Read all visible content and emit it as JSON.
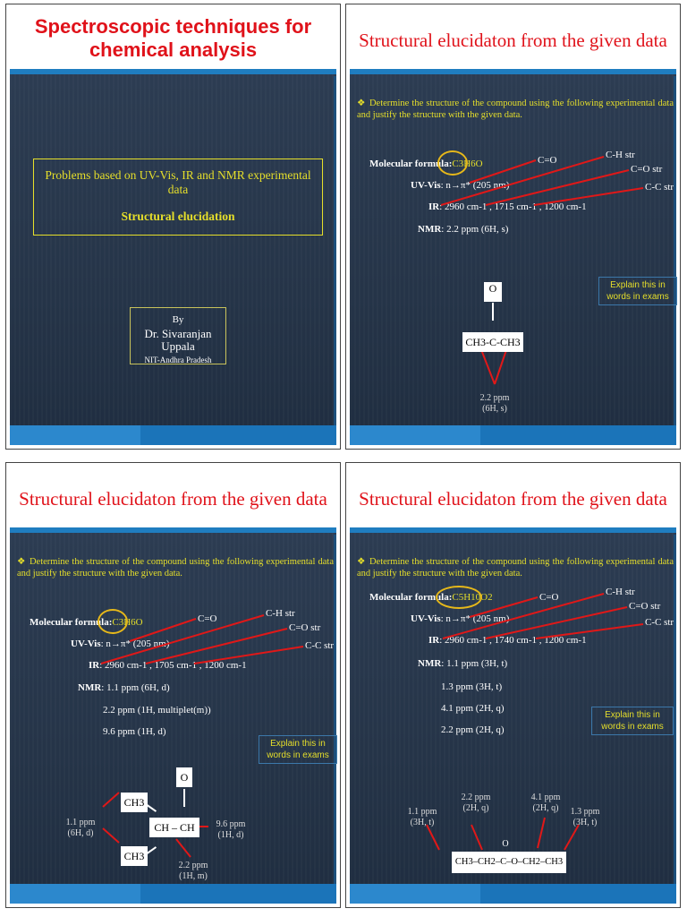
{
  "slide1": {
    "title_line1": "Spectroscopic techniques for",
    "title_line2": "chemical analysis",
    "box_line1": "Problems based on UV-Vis, IR and NMR experimental data",
    "box_line2": "Structural elucidation",
    "by": "By",
    "author": "Dr. Sivaranjan Uppala",
    "affiliation": "NIT-Andhra Pradesh"
  },
  "slide2": {
    "title": "Structural elucidaton from the given data",
    "bullet": "Determine the structure of the compound using the following experimental data and justify the structure with the given data.",
    "mf_label": "Molecular formula:",
    "mf_value": "C3H6O",
    "uv_label": "UV-Vis",
    "uv_value": ": n→π* (205 nm)",
    "ir_label": "IR",
    "ir_value": ": 2960 cm-1 , 1715 cm-1 , 1200 cm-1",
    "nmr_label": "NMR",
    "nmr_value": ": 2.2 ppm (6H, s)",
    "ann_co": "C=O",
    "ann_ch": "C-H str",
    "ann_costr": "C=O str",
    "ann_cc": "C-C str",
    "explain": "Explain this in words in exams",
    "struct_o": "O",
    "struct_main": "CH3-C-CH3",
    "peak1": "2.2 ppm",
    "peak1b": "(6H, s)"
  },
  "slide3": {
    "title": "Structural elucidaton from the given data",
    "bullet": "Determine the structure of the compound using the following experimental data and justify the structure with the given data.",
    "mf_label": "Molecular formula:",
    "mf_value": "C3H6O",
    "uv_label": "UV-Vis",
    "uv_value": ": n→π* (205 nm)",
    "ir_label": "IR",
    "ir_value": ": 2960 cm-1 , 1705 cm-1 , 1200 cm-1",
    "nmr_label": "NMR",
    "nmr1": ": 1.1 ppm (6H, d)",
    "nmr2": "2.2 ppm (1H, multiplet(m))",
    "nmr3": "9.6 ppm (1H, d)",
    "ann_co": "C=O",
    "ann_ch": "C-H str",
    "ann_costr": "C=O str",
    "ann_cc": "C-C str",
    "explain": "Explain this in words in exams",
    "s_ch3a": "CH3",
    "s_ch3b": "CH3",
    "s_o": "O",
    "s_chch": "CH – CH",
    "p1": "1.1 ppm",
    "p1b": "(6H, d)",
    "p2": "9.6 ppm",
    "p2b": "(1H, d)",
    "p3": "2.2 ppm",
    "p3b": "(1H, m)"
  },
  "slide4": {
    "title": "Structural elucidaton from the given data",
    "bullet": "Determine the structure of the compound using the following experimental data and justify the structure with the given data.",
    "mf_label": "Molecular formula:",
    "mf_value": "C5H10O2",
    "uv_label": "UV-Vis",
    "uv_value": ": n→π* (205 nm)",
    "ir_label": "IR",
    "ir_value": ": 2960 cm-1 , 1740 cm-1 , 1200 cm-1",
    "nmr_label": "NMR",
    "nmr1": ": 1.1 ppm (3H, t)",
    "nmr2": "1.3 ppm (3H, t)",
    "nmr3": "4.1 ppm (2H, q)",
    "nmr4": "2.2 ppm (2H, q)",
    "ann_co": "C=O",
    "ann_ch": "C-H str",
    "ann_costr": "C=O str",
    "ann_cc": "C-C str",
    "explain": "Explain this in words in exams",
    "s_o": "O",
    "s_main": "CH3–CH2–C–O–CH2–CH3",
    "p1": "1.1 ppm",
    "p1b": "(3H, t)",
    "p2": "2.2 ppm",
    "p2b": "(2H, q)",
    "p3": "4.1 ppm",
    "p3b": "(2H, q)",
    "p4": "1.3 ppm",
    "p4b": "(3H, t)"
  },
  "colors": {
    "title_red": "#e0121a",
    "text_yellow": "#e6df2a",
    "slide_bg": "#2c3c52",
    "band_blue": "#1f7dc0",
    "arrow_red": "#e01818"
  }
}
